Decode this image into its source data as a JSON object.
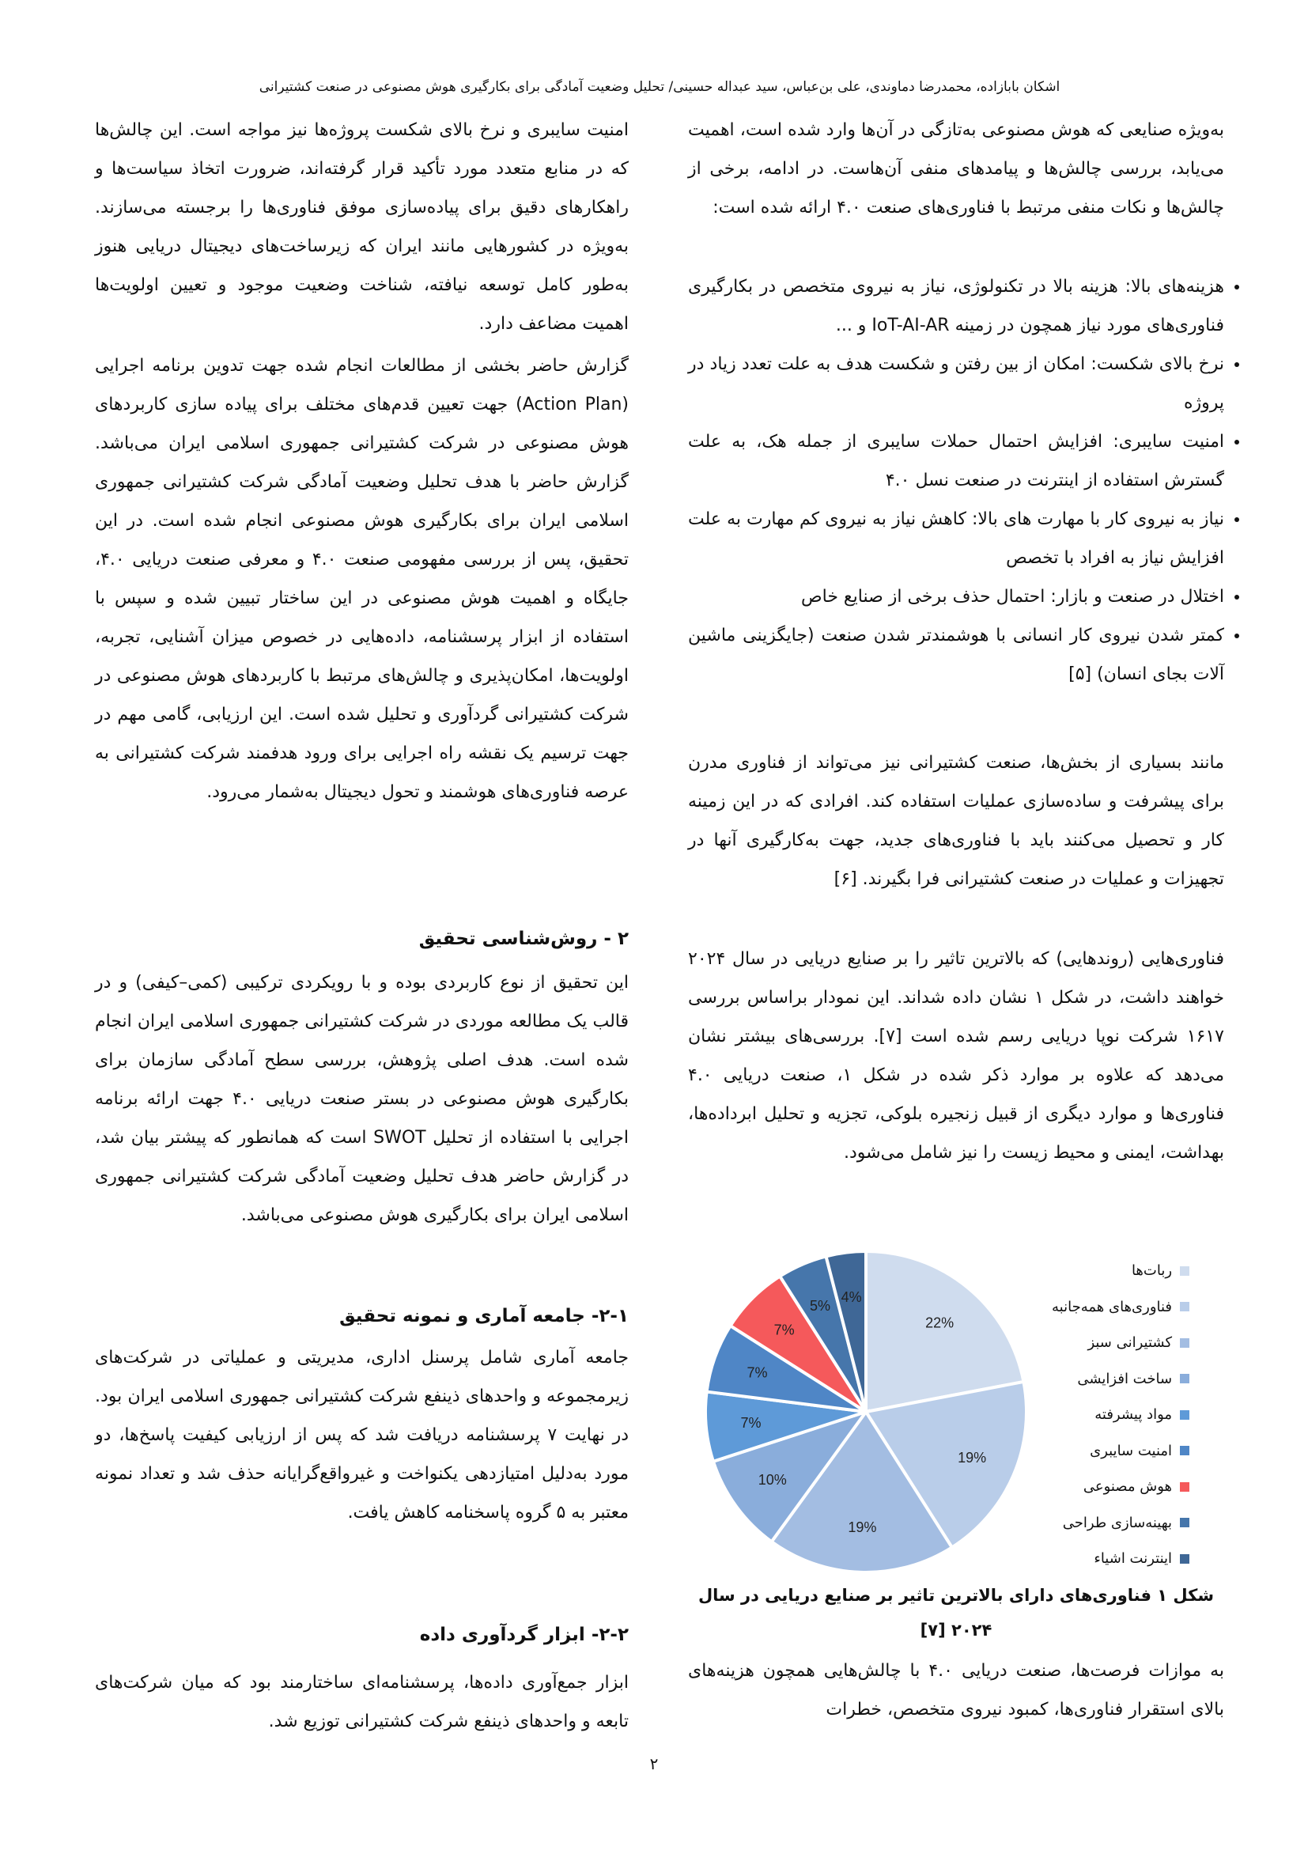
{
  "header": {
    "running_title": "اشکان بابازاده، محمدرضا دماوندی، علی بن‌عباس، سید عبداله حسینی/ تحلیل وضعیت آمادگی برای بکارگیری هوش مصنوعی در صنعت کشتیرانی"
  },
  "right_column": {
    "p1": "به‌ویژه صنایعی که هوش مصنوعی به‌تازگی در آن‌ها وارد شده است، اهمیت می‌یابد، بررسی چالش‌ها و پیامدهای منفی آن‌هاست. در ادامه، برخی از چالش‌ها و نکات منفی مرتبط با فناوری‌های صنعت ۴.۰ ارائه شده است:",
    "bullets": [
      "هزینه‌های بالا: هزینه بالا در تکنولوژی، نیاز به نیروی متخصص در بکارگیری فناوری‌های مورد نیاز همچون در زمینه IoT-AI-AR و ...",
      "نرخ بالای شکست: امکان از بین رفتن و شکست هدف به علت تعدد زیاد در پروژه",
      "امنیت سایبری: افزایش احتمال حملات سایبری از جمله هک، به علت گسترش استفاده از اینترنت در صنعت نسل ۴.۰",
      "نیاز به نیروی کار با مهارت های بالا: کاهش نیاز به نیروی کم مهارت به علت افزایش نیاز به افراد با تخصص",
      "اختلال در صنعت و بازار: احتمال حذف برخی از صنایع خاص",
      "کمتر شدن نیروی کار انسانی با هوشمندتر شدن صنعت (جایگزینی ماشین آلات بجای انسان) [۵]"
    ],
    "p2": "مانند بسیاری از بخش‌ها، صنعت کشتیرانی نیز می‌تواند از فناوری مدرن برای پیشرفت و ساده‌سازی عملیات استفاده کند. افرادی که در این زمینه کار و تحصیل می‌کنند باید با فناوری‌های جدید، جهت به‌کارگیری آنها در تجهیزات و عملیات در صنعت کشتیرانی فرا بگیرند. [۶]",
    "p3": "فناوری‌هایی (روندهایی) که بالاترین تاثیر را بر صنایع دریایی در سال ۲۰۲۴ خواهند داشت، در شکل ۱ نشان داده شداند. این نمودار براساس بررسی ۱۶۱۷ شرکت نوپا دریایی رسم شده است [۷]. بررسی‌های بیشتر نشان می‌دهد که علاوه بر موارد ذکر شده در شکل ۱، صنعت دریایی ۴.۰ فناوری‌ها و موارد دیگری از قبیل زنجیره بلوکی، تجزیه و تحلیل ابرداده‌ها، بهداشت، ایمنی و محیط زیست را نیز شامل می‌شود.",
    "caption": "شکل ۱ فناوری‌های دارای بالاترین تاثیر بر صنایع دریایی در سال ۲۰۲۴ [۷]",
    "p4": "به موازات فرصت‌ها، صنعت دریایی ۴.۰ با چالش‌هایی همچون هزینه‌های بالای استقرار فناوری‌ها، کمبود نیروی متخصص، خطرات"
  },
  "left_column": {
    "p1": "امنیت سایبری و نرخ بالای شکست پروژه‌ها نیز مواجه است. این چالش‌ها که در منابع متعدد مورد تأکید قرار گرفته‌اند، ضرورت اتخاذ سیاست‌ها و راهکارهای دقیق برای پیاده‌سازی موفق فناوری‌ها را برجسته می‌سازند. به‌ویژه در کشورهایی مانند ایران که زیرساخت‌های دیجیتال دریایی هنوز به‌طور کامل توسعه نیافته، شناخت وضعیت موجود و تعیین اولویت‌ها اهمیت مضاعف دارد.",
    "p2": "گزارش حاضر بخشی از مطالعات انجام شده جهت تدوین برنامه اجرایی (Action Plan) جهت تعیین قدم‌های مختلف برای پیاده سازی کاربردهای هوش مصنوعی در شرکت کشتیرانی جمهوری اسلامی ایران می‌باشد. گزارش حاضر با هدف تحلیل وضعیت آمادگی شرکت کشتیرانی جمهوری اسلامی ایران برای بکارگیری هوش مصنوعی انجام شده است. در این تحقیق، پس از بررسی مفهومی صنعت ۴.۰ و معرفی صنعت دریایی ۴.۰، جایگاه و اهمیت هوش مصنوعی در این ساختار تبیین شده و سپس با استفاده از ابزار پرسشنامه، داده‌هایی در خصوص میزان آشنایی، تجربه، اولویت‌ها، امکان‌پذیری و چالش‌های مرتبط با کاربردهای هوش مصنوعی در شرکت کشتیرانی گردآوری و تحلیل شده است. این ارزیابی، گامی مهم در جهت ترسیم یک نقشه راه اجرایی برای ورود هدفمند شرکت کشتیرانی به عرصه فناوری‌های هوشمند و تحول دیجیتال به‌شمار می‌رود.",
    "h2": "۲ - روش‌شناسی تحقیق",
    "p3": "این تحقیق از نوع کاربردی بوده و با رویکردی ترکیبی (کمی–کیفی) و در قالب یک مطالعه موردی در شرکت کشتیرانی جمهوری اسلامی ایران انجام شده است. هدف اصلی پژوهش، بررسی سطح آمادگی سازمان برای بکارگیری هوش مصنوعی در بستر صنعت دریایی ۴.۰ جهت ارائه برنامه اجرایی با استفاده از تحلیل SWOT است که همانطور که پیشتر بیان شد، در گزارش حاضر هدف تحلیل وضعیت آمادگی شرکت کشتیرانی جمهوری اسلامی ایران برای بکارگیری هوش مصنوعی می‌باشد.",
    "h21": "۲-۱- جامعه آماری و نمونه تحقیق",
    "p4": "جامعه آماری شامل پرسنل اداری، مدیریتی و عملیاتی در شرکت‌های زیرمجموعه و واحدهای ذینفع شرکت کشتیرانی جمهوری اسلامی ایران بود. در نهایت ۷ پرسشنامه دریافت شد که پس از ارزیابی کیفیت پاسخ‌ها، دو مورد به‌دلیل امتیازدهی یکنواخت و غیرواقع‌گرایانه حذف شد و تعداد نمونه معتبر به ۵ گروه پاسخنامه کاهش یافت.",
    "h22": "۲-۲- ابزار گردآوری داده",
    "p5": "ابزار جمع‌آوری داده‌ها، پرسشنامه‌ای ساختارمند بود که میان شرکت‌های تابعه و واحدهای ذینفع شرکت کشتیرانی توزیع شد."
  },
  "page_number": "۲",
  "chart_data": {
    "type": "pie",
    "categories": [
      "ربات‌ها",
      "فناوری‌های همه‌جانبه",
      "کشتیرانی سبز",
      "ساخت افزایشی",
      "مواد پیشرفته",
      "امنیت سایبری",
      "هوش مصنوعی",
      "بهینه‌سازی طراحی",
      "اینترنت اشیاء"
    ],
    "values": [
      22,
      19,
      19,
      10,
      7,
      7,
      7,
      5,
      4
    ],
    "labels": [
      "22%",
      "19%",
      "19%",
      "10%",
      "7%",
      "7%",
      "7%",
      "5%",
      "4%"
    ],
    "colors": [
      "#cfdcee",
      "#b9cde9",
      "#a3bde2",
      "#8aaddb",
      "#5e9ad8",
      "#4f86c6",
      "#f5595b",
      "#4676ab",
      "#3f6796"
    ],
    "legend": "right"
  }
}
